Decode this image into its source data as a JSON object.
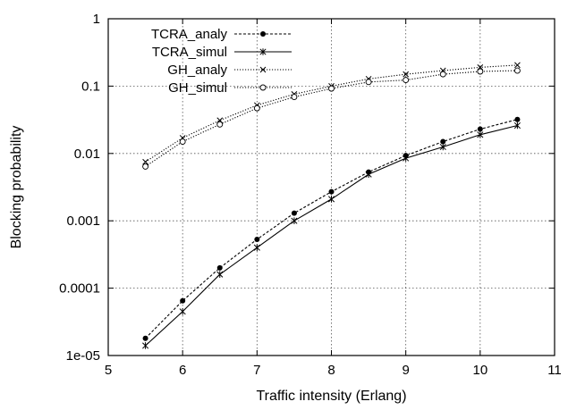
{
  "chart_data": {
    "type": "line",
    "title": "",
    "xlabel": "Traffic intensity (Erlang)",
    "ylabel": "Blocking probability",
    "x_scale": "linear",
    "y_scale": "log",
    "xlim": [
      5,
      11
    ],
    "ylim": [
      1e-05,
      1
    ],
    "x_ticks": [
      5,
      6,
      7,
      8,
      9,
      10,
      11
    ],
    "x_tick_labels": [
      "5",
      "6",
      "7",
      "8",
      "9",
      "10",
      "11"
    ],
    "y_ticks": [
      1e-05,
      0.0001,
      0.001,
      0.01,
      0.1,
      1
    ],
    "y_tick_labels": [
      "1e-05",
      "0.0001",
      "0.001",
      "0.01",
      "0.1",
      "1"
    ],
    "grid": true,
    "legend_position": "top-left",
    "x": [
      5.5,
      6,
      6.5,
      7,
      7.5,
      8,
      8.5,
      9,
      9.5,
      10,
      10.5
    ],
    "series": [
      {
        "name": "TCRA_analy",
        "line": "dashed",
        "marker": "filled-circle",
        "values": [
          1.8e-05,
          6.5e-05,
          0.0002,
          0.00053,
          0.0013,
          0.0027,
          0.0053,
          0.0093,
          0.015,
          0.023,
          0.032
        ]
      },
      {
        "name": "TCRA_simul",
        "line": "solid",
        "marker": "asterisk",
        "values": [
          1.4e-05,
          4.5e-05,
          0.00016,
          0.0004,
          0.001,
          0.0021,
          0.0049,
          0.0085,
          0.0125,
          0.019,
          0.026
        ]
      },
      {
        "name": "GH_analy",
        "line": "dotted",
        "marker": "cross",
        "values": [
          0.0075,
          0.017,
          0.031,
          0.052,
          0.076,
          0.1,
          0.128,
          0.15,
          0.17,
          0.19,
          0.205
        ]
      },
      {
        "name": "GH_simul",
        "line": "dotted",
        "marker": "open-circle",
        "values": [
          0.0064,
          0.015,
          0.027,
          0.047,
          0.069,
          0.092,
          0.115,
          0.123,
          0.15,
          0.165,
          0.17
        ]
      }
    ]
  }
}
